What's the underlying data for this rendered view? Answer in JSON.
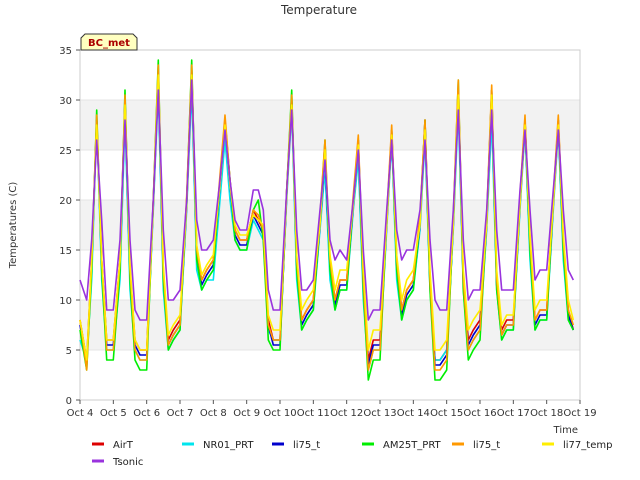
{
  "chart_data": {
    "type": "line",
    "title": "Temperature",
    "xlabel": "Time",
    "ylabel": "Temperatures (C)",
    "badge": "BC_met",
    "xlim": [
      4,
      19
    ],
    "ylim": [
      0,
      35
    ],
    "x_ticks": [
      "Oct 4",
      "Oct 5",
      "Oct 6",
      "Oct 7",
      "Oct 8",
      "Oct 9",
      "Oct 10",
      "Oct 11",
      "Oct 12",
      "Oct 13",
      "Oct 14",
      "Oct 15",
      "Oct 16",
      "Oct 17",
      "Oct 18",
      "Oct 19"
    ],
    "y_ticks": [
      0,
      5,
      10,
      15,
      20,
      25,
      30,
      35
    ],
    "grid": "horizontal bands",
    "legend_position": "bottom",
    "x": [
      4.0,
      4.2,
      4.35,
      4.5,
      4.65,
      4.8,
      5.0,
      5.2,
      5.35,
      5.5,
      5.65,
      5.8,
      6.0,
      6.2,
      6.35,
      6.5,
      6.65,
      6.8,
      7.0,
      7.2,
      7.35,
      7.5,
      7.65,
      7.8,
      8.0,
      8.2,
      8.35,
      8.5,
      8.65,
      8.8,
      9.0,
      9.2,
      9.35,
      9.5,
      9.65,
      9.8,
      10.0,
      10.2,
      10.35,
      10.5,
      10.65,
      10.8,
      11.0,
      11.2,
      11.35,
      11.5,
      11.65,
      11.8,
      12.0,
      12.2,
      12.35,
      12.5,
      12.65,
      12.8,
      13.0,
      13.2,
      13.35,
      13.5,
      13.65,
      13.8,
      14.0,
      14.2,
      14.35,
      14.5,
      14.65,
      14.8,
      15.0,
      15.2,
      15.35,
      15.5,
      15.65,
      15.8,
      16.0,
      16.2,
      16.35,
      16.5,
      16.65,
      16.8,
      17.0,
      17.2,
      17.35,
      17.5,
      17.65,
      17.8,
      18.0,
      18.2,
      18.35,
      18.5,
      18.65,
      18.8
    ],
    "series": [
      {
        "name": "AirT",
        "color": "#dd0000",
        "values": [
          8.0,
          4.0,
          14.0,
          28.0,
          14.0,
          6.0,
          6.0,
          14.0,
          30.0,
          13.0,
          6.0,
          5.0,
          5.0,
          20.0,
          32.0,
          13.0,
          6.0,
          7.0,
          8.0,
          20.0,
          33.0,
          15.0,
          12.0,
          13.0,
          14.0,
          22.0,
          28.0,
          22.0,
          17.0,
          16.0,
          16.0,
          19.0,
          18.0,
          17.0,
          8.0,
          6.0,
          6.0,
          21.0,
          30.0,
          14.0,
          8.0,
          9.0,
          10.0,
          18.0,
          25.0,
          14.0,
          10.0,
          12.0,
          12.0,
          20.0,
          26.0,
          12.0,
          4.0,
          6.0,
          6.0,
          18.0,
          27.0,
          14.0,
          9.0,
          11.0,
          12.0,
          18.0,
          28.0,
          12.0,
          4.0,
          4.0,
          5.0,
          18.0,
          31.0,
          12.0,
          6.0,
          7.0,
          8.0,
          18.0,
          31.0,
          12.0,
          7.0,
          8.0,
          8.0,
          20.0,
          28.0,
          16.0,
          8.0,
          9.0,
          9.0,
          20.0,
          28.0,
          16.0,
          9.0,
          7.0
        ]
      },
      {
        "name": "NR01_PRT",
        "color": "#00e5ee",
        "values": [
          6.0,
          4.0,
          12.0,
          28.0,
          12.0,
          5.0,
          5.0,
          12.0,
          28.0,
          11.0,
          5.0,
          4.0,
          4.0,
          19.0,
          31.0,
          11.0,
          5.0,
          6.0,
          7.0,
          19.0,
          31.0,
          13.0,
          11.0,
          12.0,
          12.0,
          20.0,
          26.0,
          20.0,
          16.0,
          15.0,
          15.0,
          18.0,
          17.0,
          16.0,
          7.0,
          6.0,
          6.0,
          20.0,
          29.0,
          12.0,
          7.0,
          8.0,
          9.0,
          17.0,
          23.0,
          12.0,
          9.0,
          11.0,
          11.0,
          19.0,
          24.0,
          10.0,
          3.0,
          5.0,
          5.0,
          17.0,
          26.0,
          12.0,
          8.0,
          10.0,
          11.0,
          17.0,
          26.0,
          11.0,
          4.0,
          4.0,
          5.0,
          17.0,
          29.0,
          11.0,
          5.0,
          6.0,
          7.0,
          17.0,
          28.0,
          11.0,
          6.0,
          7.0,
          7.0,
          19.0,
          27.0,
          14.0,
          7.0,
          8.0,
          8.0,
          19.0,
          27.0,
          14.0,
          8.0,
          7.0
        ]
      },
      {
        "name": "li75_t",
        "color": "#0000cc",
        "values": [
          7.5,
          3.5,
          13.5,
          28.0,
          13.5,
          5.5,
          5.5,
          13.5,
          29.5,
          12.5,
          5.5,
          4.5,
          4.5,
          19.5,
          32.0,
          12.5,
          5.5,
          6.5,
          7.5,
          19.5,
          32.5,
          14.5,
          11.5,
          12.5,
          13.5,
          21.5,
          27.5,
          21.5,
          16.5,
          15.5,
          15.5,
          18.5,
          17.5,
          16.5,
          7.5,
          5.5,
          5.5,
          20.5,
          30.0,
          13.5,
          7.5,
          8.5,
          9.5,
          17.5,
          24.5,
          13.5,
          9.5,
          11.5,
          11.5,
          19.5,
          25.5,
          11.5,
          3.5,
          5.5,
          5.5,
          17.5,
          26.5,
          13.5,
          8.5,
          10.5,
          11.5,
          17.5,
          27.5,
          11.5,
          3.5,
          3.5,
          4.5,
          17.5,
          31.0,
          11.5,
          5.5,
          6.5,
          7.5,
          17.5,
          30.5,
          11.5,
          6.5,
          7.5,
          7.5,
          19.5,
          27.5,
          15.5,
          7.5,
          8.5,
          8.5,
          19.5,
          27.5,
          15.5,
          8.5,
          7.0
        ]
      },
      {
        "name": "AM25T_PRT",
        "color": "#00ee00",
        "values": [
          7.0,
          3.0,
          13.0,
          29.0,
          13.0,
          4.0,
          4.0,
          13.0,
          31.0,
          12.0,
          4.0,
          3.0,
          3.0,
          20.0,
          34.0,
          12.0,
          5.0,
          6.0,
          7.0,
          20.0,
          34.0,
          14.0,
          11.0,
          12.0,
          13.0,
          22.0,
          28.0,
          22.0,
          16.0,
          15.0,
          15.0,
          19.0,
          20.0,
          16.0,
          6.0,
          5.0,
          5.0,
          21.0,
          31.0,
          13.0,
          7.0,
          8.0,
          9.0,
          18.0,
          26.0,
          13.0,
          9.0,
          11.0,
          11.0,
          20.0,
          26.0,
          11.0,
          2.0,
          4.0,
          4.0,
          18.0,
          27.0,
          13.0,
          8.0,
          10.0,
          11.0,
          18.0,
          28.0,
          11.0,
          2.0,
          2.0,
          3.0,
          18.0,
          32.0,
          11.0,
          4.0,
          5.0,
          6.0,
          18.0,
          31.0,
          11.0,
          6.0,
          7.0,
          7.0,
          20.0,
          28.0,
          15.0,
          7.0,
          8.0,
          8.0,
          20.0,
          28.0,
          15.0,
          8.0,
          7.0
        ]
      },
      {
        "name": "li75_t",
        "color": "#ff9900",
        "values": [
          8.0,
          3.0,
          14.0,
          28.5,
          14.0,
          5.0,
          5.0,
          14.0,
          30.5,
          13.0,
          5.0,
          4.0,
          4.0,
          20.0,
          33.5,
          13.0,
          5.5,
          6.5,
          7.5,
          20.5,
          33.5,
          15.0,
          12.0,
          13.0,
          14.0,
          22.5,
          28.5,
          22.0,
          17.0,
          16.0,
          16.0,
          19.0,
          18.5,
          17.0,
          7.5,
          6.0,
          6.0,
          21.0,
          30.5,
          14.0,
          8.0,
          9.0,
          10.0,
          18.5,
          26.0,
          14.0,
          10.0,
          12.0,
          12.0,
          20.5,
          26.5,
          12.0,
          3.0,
          5.0,
          5.0,
          18.5,
          27.5,
          14.0,
          9.0,
          11.0,
          12.0,
          18.5,
          28.0,
          12.0,
          3.0,
          3.0,
          4.0,
          18.5,
          32.0,
          12.0,
          5.0,
          6.0,
          7.0,
          18.5,
          31.5,
          12.0,
          6.5,
          7.5,
          7.5,
          20.5,
          28.5,
          16.0,
          8.0,
          9.0,
          9.0,
          20.5,
          28.5,
          16.0,
          9.0,
          7.5
        ]
      },
      {
        "name": "li77_temp",
        "color": "#ffee00",
        "values": [
          8.0,
          4.0,
          14.0,
          27.5,
          14.0,
          6.0,
          6.0,
          14.0,
          29.5,
          13.5,
          6.0,
          5.0,
          5.0,
          19.5,
          32.5,
          13.5,
          6.5,
          7.5,
          8.5,
          19.5,
          32.5,
          15.5,
          12.5,
          13.5,
          14.5,
          21.5,
          27.5,
          21.5,
          17.5,
          16.5,
          16.5,
          18.5,
          18.0,
          17.5,
          8.5,
          7.0,
          7.0,
          20.5,
          29.5,
          14.5,
          9.0,
          10.0,
          11.0,
          17.5,
          25.0,
          14.5,
          11.0,
          13.0,
          13.0,
          19.5,
          25.5,
          13.0,
          5.0,
          7.0,
          7.0,
          17.5,
          26.5,
          14.5,
          10.0,
          12.0,
          13.0,
          17.5,
          27.0,
          13.0,
          5.0,
          5.0,
          6.0,
          17.5,
          30.5,
          13.0,
          7.0,
          8.0,
          9.0,
          17.5,
          30.5,
          13.0,
          7.5,
          8.5,
          8.5,
          19.5,
          27.5,
          16.5,
          9.0,
          10.0,
          10.0,
          19.5,
          27.5,
          16.5,
          10.0,
          8.0
        ]
      },
      {
        "name": "Tsonic",
        "color": "#9933dd",
        "values": [
          12.0,
          10.0,
          16.0,
          26.0,
          18.0,
          9.0,
          9.0,
          16.0,
          28.0,
          16.0,
          9.0,
          8.0,
          8.0,
          20.0,
          31.0,
          17.0,
          10.0,
          10.0,
          11.0,
          20.0,
          32.0,
          18.0,
          15.0,
          15.0,
          16.0,
          22.0,
          27.0,
          22.0,
          18.0,
          17.0,
          17.0,
          21.0,
          21.0,
          19.0,
          11.0,
          9.0,
          9.0,
          21.0,
          29.0,
          17.0,
          11.0,
          11.0,
          12.0,
          19.0,
          24.0,
          16.0,
          14.0,
          15.0,
          14.0,
          20.0,
          25.0,
          15.0,
          8.0,
          9.0,
          9.0,
          19.0,
          26.0,
          17.0,
          14.0,
          15.0,
          15.0,
          19.0,
          26.0,
          16.0,
          10.0,
          9.0,
          9.0,
          19.0,
          29.0,
          16.0,
          10.0,
          11.0,
          11.0,
          19.0,
          29.0,
          17.0,
          11.0,
          11.0,
          11.0,
          21.0,
          27.0,
          19.0,
          12.0,
          13.0,
          13.0,
          21.0,
          27.0,
          19.0,
          13.0,
          12.0
        ]
      }
    ]
  }
}
